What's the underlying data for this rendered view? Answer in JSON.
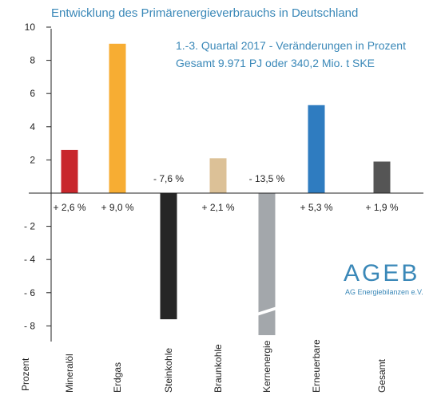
{
  "chart_data": {
    "type": "bar",
    "title": "Entwicklung des Primärenergieverbrauchs in Deutschland",
    "subtitle_lines": [
      "1.-3. Quartal 2017 - Veränderungen in Prozent",
      "Gesamt 9.971 PJ oder 340,2 Mio. t SKE"
    ],
    "ylabel": "Prozent",
    "ylim": [
      -8,
      10
    ],
    "yticks": [
      10,
      8,
      6,
      4,
      2,
      -2,
      -4,
      -6,
      -8
    ],
    "ytick_labels": [
      "10",
      "8",
      "6",
      "4",
      "2",
      "- 2",
      "- 4",
      "- 6",
      "- 8"
    ],
    "grid": false,
    "categories": [
      "Mineralöl",
      "Erdgas",
      "Steinkohle",
      "Braunkohle",
      "Kernenergie",
      "Erneuerbare",
      "Gesamt"
    ],
    "values": [
      2.6,
      9.0,
      -7.6,
      2.1,
      -13.5,
      5.3,
      1.9
    ],
    "value_labels": [
      "+ 2,6 %",
      "+ 9,0 %",
      "- 7,6 %",
      "+ 2,1 %",
      "- 13,5 %",
      "+ 5,3 %",
      "+ 1,9 %"
    ],
    "colors": [
      "#c8262c",
      "#f7ad33",
      "#262626",
      "#dcc197",
      "#a3a7ab",
      "#2f7cc0",
      "#555555"
    ],
    "axis_break": "Kernenergie"
  },
  "logo": {
    "name": "AGEB",
    "tagline": "AG Energiebilanzen e.V."
  }
}
